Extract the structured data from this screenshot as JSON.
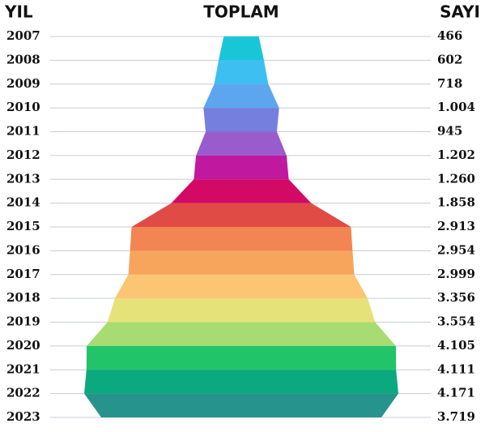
{
  "chart_data": {
    "type": "funnel",
    "title": "TOPLAM",
    "left_header": "YIL",
    "right_header": "SAYI",
    "categories": [
      "2007",
      "2008",
      "2009",
      "2010",
      "2011",
      "2012",
      "2013",
      "2014",
      "2015",
      "2016",
      "2017",
      "2018",
      "2019",
      "2020",
      "2021",
      "2022",
      "2023"
    ],
    "values": [
      466,
      602,
      718,
      1004,
      945,
      1202,
      1260,
      1858,
      2913,
      2954,
      2999,
      3356,
      3554,
      4105,
      4111,
      4171,
      3719
    ],
    "value_labels": [
      "466",
      "602",
      "718",
      "1.004",
      "945",
      "1.202",
      "1.260",
      "1.858",
      "2.913",
      "2.954",
      "2.999",
      "3.356",
      "3.554",
      "4.105",
      "4.111",
      "4.171",
      "3.719"
    ],
    "colors": [
      "#19c6d8",
      "#3dbff2",
      "#5ca6ef",
      "#757fde",
      "#9a5ccc",
      "#c0189e",
      "#d20a66",
      "#e04b46",
      "#f28552",
      "#f7a45c",
      "#fbc574",
      "#e6e27a",
      "#a6dc72",
      "#22c46a",
      "#0aa97e",
      "#26948c",
      "#3a7a80"
    ],
    "grid": true
  }
}
